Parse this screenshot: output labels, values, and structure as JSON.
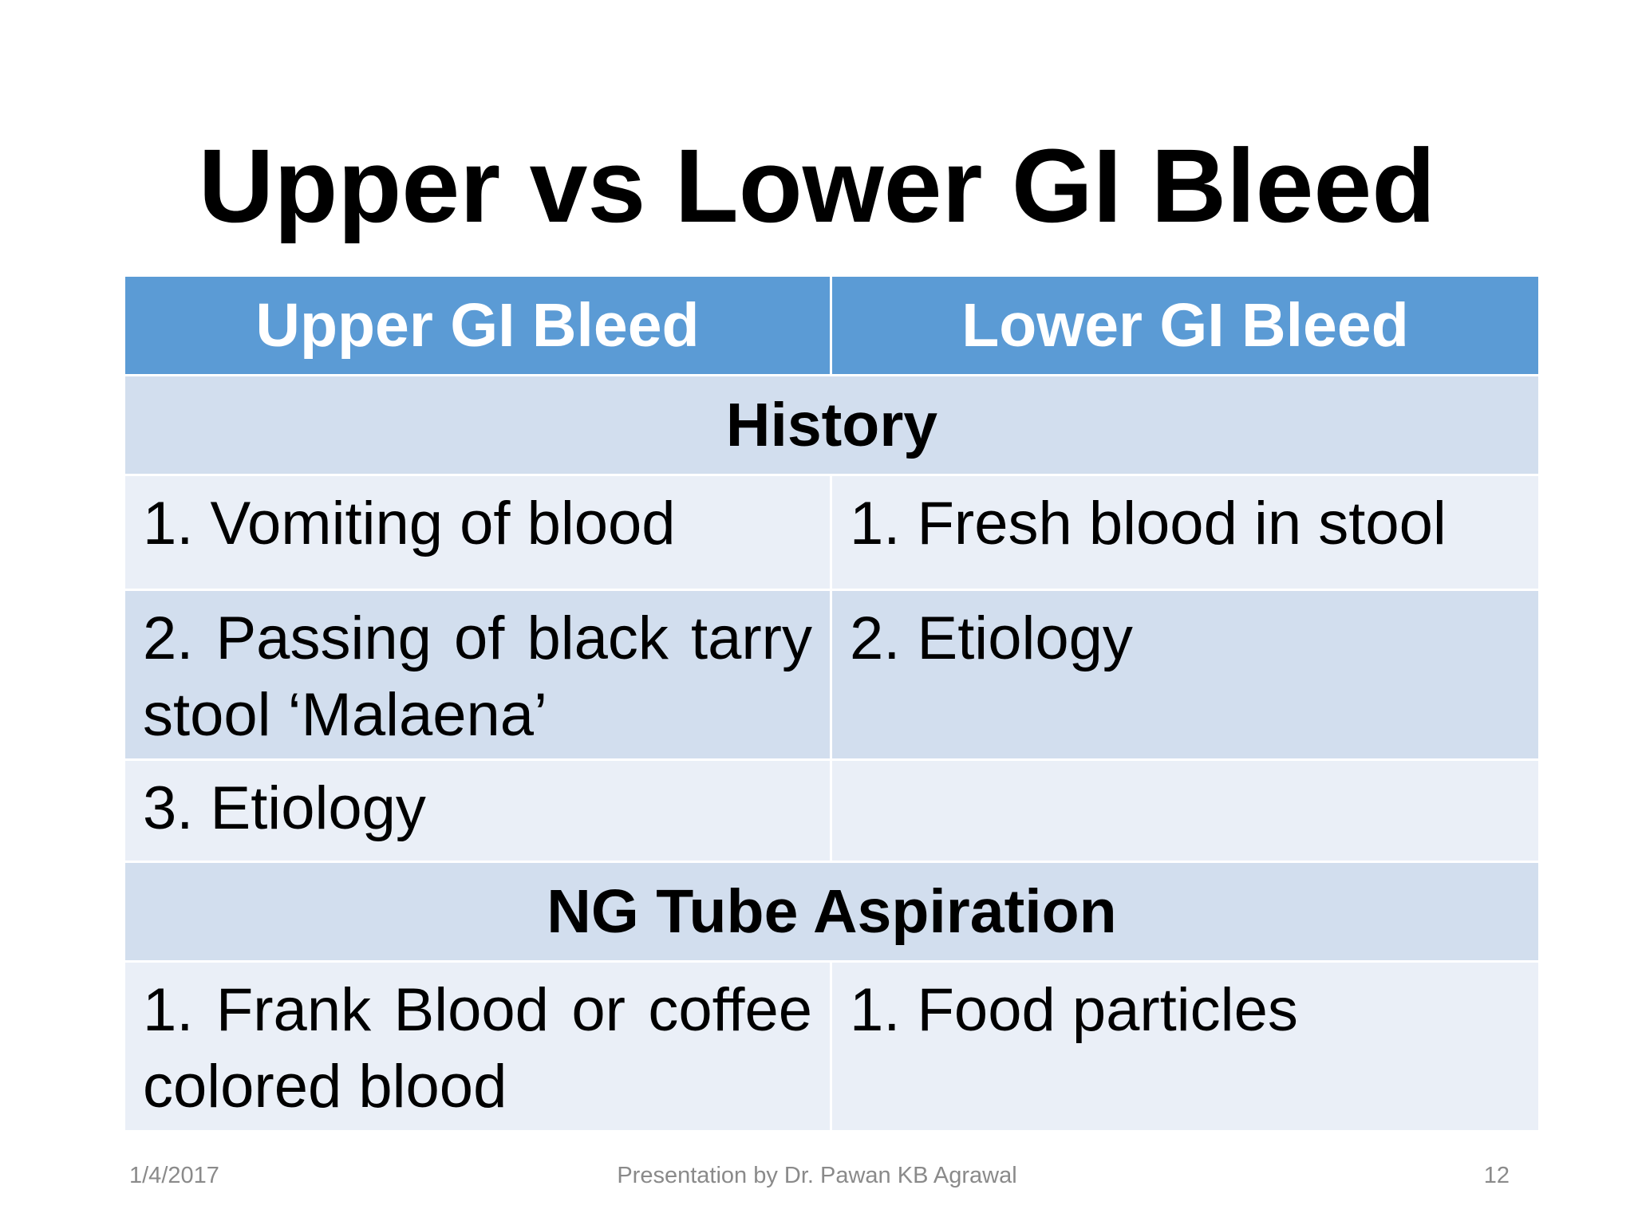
{
  "slide": {
    "title": "Upper vs Lower GI Bleed"
  },
  "table": {
    "headers": [
      "Upper GI Bleed",
      "Lower GI Bleed"
    ],
    "sections": [
      {
        "title": "History",
        "rows": [
          [
            "1. Vomiting of blood",
            "1. Fresh blood in stool"
          ],
          [
            "2. Passing of black tarry stool ‘Malaena’",
            "2. Etiology"
          ],
          [
            "3. Etiology",
            ""
          ]
        ]
      },
      {
        "title": "NG Tube Aspiration",
        "rows": [
          [
            "1. Frank Blood or coffee colored blood",
            "1. Food particles"
          ]
        ]
      }
    ]
  },
  "footer": {
    "date": "1/4/2017",
    "author": "Presentation by Dr. Pawan KB Agrawal",
    "page": "12"
  },
  "colors": {
    "header_bg": "#5b9bd5",
    "band_dark": "#d2deee",
    "band_light": "#eaeff7"
  }
}
